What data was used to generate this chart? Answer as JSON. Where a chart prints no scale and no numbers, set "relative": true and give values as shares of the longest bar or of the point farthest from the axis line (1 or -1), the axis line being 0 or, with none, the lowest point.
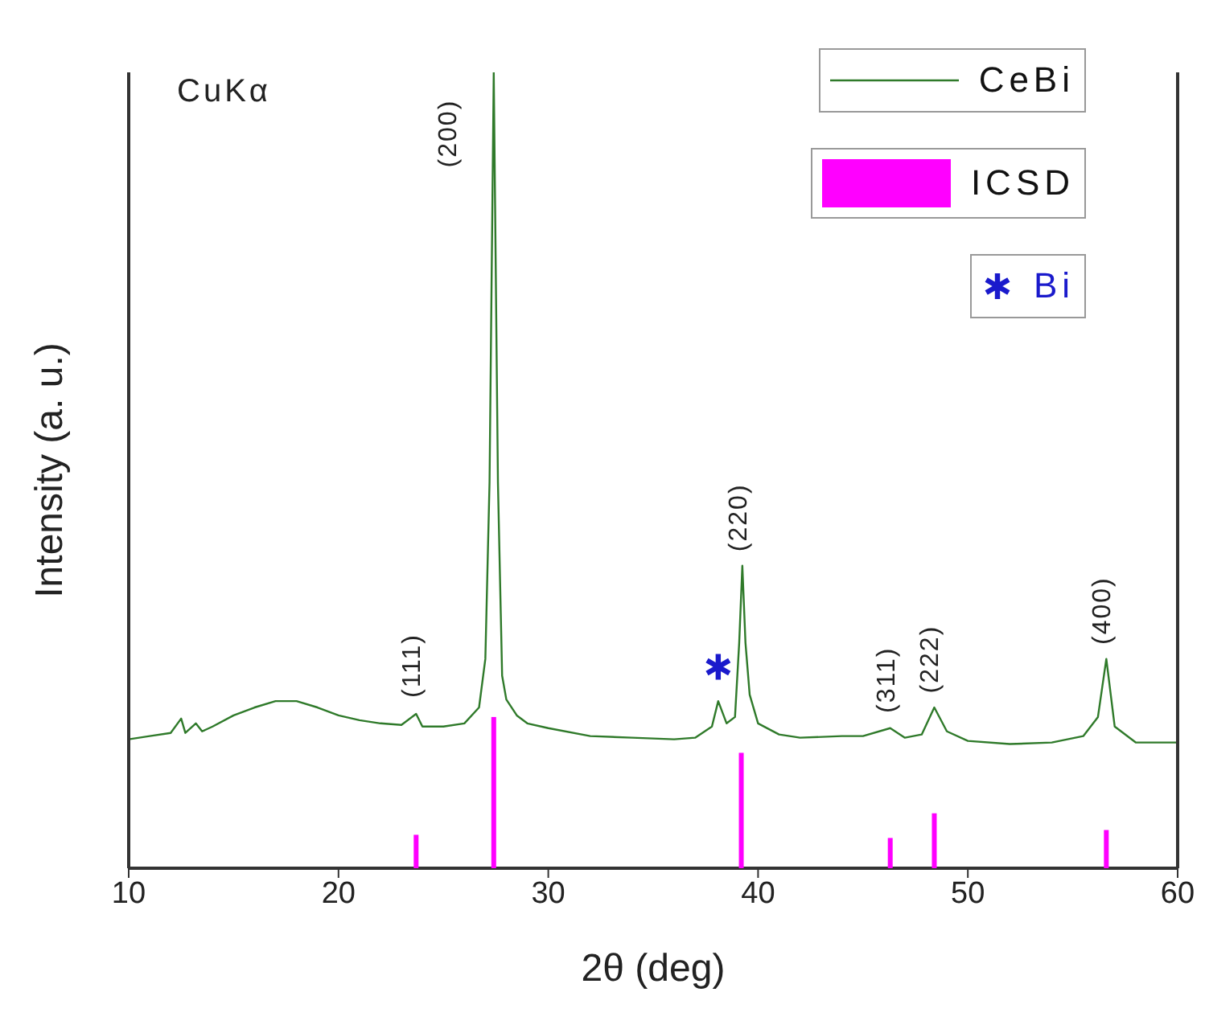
{
  "chart_data": {
    "type": "line",
    "relative": true,
    "xlabel": "2θ (deg)",
    "ylabel": "Intensity (a. u.)",
    "xlim": [
      10,
      60
    ],
    "xticks": [
      10,
      20,
      30,
      40,
      50,
      60
    ],
    "legend": "top right",
    "series": [
      {
        "name": "CeBi",
        "color": "#2f7a2a",
        "x": [
          10,
          11,
          12,
          12.5,
          12.7,
          13.2,
          13.5,
          14,
          15,
          16,
          17,
          18,
          19,
          20,
          21,
          22,
          23,
          23.7,
          24,
          25,
          26,
          26.7,
          27,
          27.2,
          27.4,
          27.6,
          27.8,
          28,
          28.5,
          29,
          30,
          32,
          34,
          36,
          37,
          37.8,
          38.1,
          38.5,
          38.9,
          39.1,
          39.25,
          39.4,
          39.6,
          40,
          41,
          42,
          44,
          45,
          46.3,
          47,
          47.8,
          48.4,
          49,
          50,
          52,
          54,
          55.5,
          56.2,
          56.6,
          57,
          58,
          60
        ],
        "values": [
          0.162,
          0.166,
          0.17,
          0.188,
          0.17,
          0.182,
          0.172,
          0.178,
          0.192,
          0.202,
          0.21,
          0.21,
          0.202,
          0.192,
          0.186,
          0.182,
          0.18,
          0.194,
          0.178,
          0.178,
          0.182,
          0.202,
          0.263,
          0.485,
          1.0,
          0.485,
          0.242,
          0.212,
          0.192,
          0.182,
          0.176,
          0.166,
          0.164,
          0.162,
          0.164,
          0.178,
          0.21,
          0.182,
          0.19,
          0.283,
          0.38,
          0.283,
          0.218,
          0.182,
          0.168,
          0.164,
          0.166,
          0.166,
          0.176,
          0.164,
          0.168,
          0.202,
          0.172,
          0.16,
          0.156,
          0.158,
          0.166,
          0.19,
          0.263,
          0.178,
          0.158,
          0.158
        ]
      },
      {
        "name": "ICSD",
        "type": "bar",
        "color": "#ff00ff",
        "x": [
          23.7,
          27.4,
          39.2,
          46.3,
          48.4,
          56.6
        ],
        "values": [
          0.042,
          0.19,
          0.145,
          0.038,
          0.069,
          0.048
        ]
      },
      {
        "name": "Bi",
        "type": "scatter",
        "marker": "cross",
        "color": "#1a1acc",
        "x": [
          38.1
        ],
        "values": [
          0.253
        ]
      }
    ],
    "annotations": [
      "CuKα",
      {
        "text": "(111)",
        "x": 23.7,
        "y": 0.194
      },
      {
        "text": "(200)",
        "x": 27.4,
        "y": 1.0
      },
      {
        "text": "(220)",
        "x": 39.25,
        "y": 0.38
      },
      {
        "text": "(311)",
        "x": 46.3,
        "y": 0.176
      },
      {
        "text": "(222)",
        "x": 48.4,
        "y": 0.202
      },
      {
        "text": "(400)",
        "x": 56.6,
        "y": 0.263
      }
    ]
  }
}
